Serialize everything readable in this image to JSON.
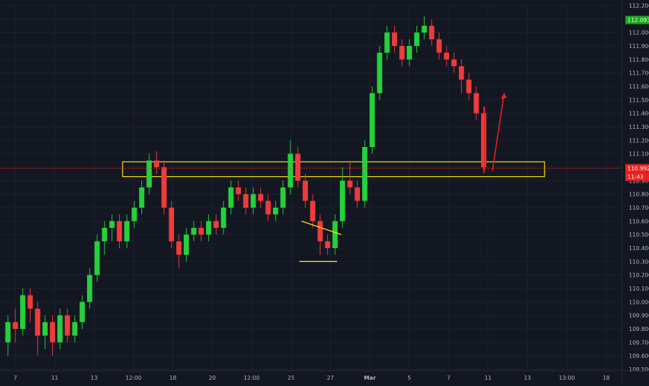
{
  "chart_data": {
    "type": "candlestick",
    "title": "",
    "xlabel": "",
    "ylabel": "",
    "ylim": [
      109.5,
      112.2
    ],
    "grid": true,
    "colors": {
      "background": "#131722",
      "grid": "#1e2230",
      "axis_text": "#b2b5be",
      "up": "#26d03c",
      "down": "#ef3b3b",
      "annotation": "#ffee00",
      "arrow": "#ef1f1f",
      "last_price_tag": "#ef1f1f",
      "high_price_tag": "#1aa31a"
    },
    "y_ticks": [
      "109.500",
      "109.600",
      "109.700",
      "109.800",
      "109.900",
      "110.000",
      "110.100",
      "110.200",
      "110.300",
      "110.400",
      "110.500",
      "110.600",
      "110.700",
      "110.800",
      "110.900",
      "111.000",
      "111.100",
      "111.200",
      "111.300",
      "111.400",
      "111.500",
      "111.600",
      "111.700",
      "111.800",
      "111.900",
      "112.000",
      "112.100",
      "112.200"
    ],
    "x_ticks": [
      "7",
      "11",
      "13",
      "12:00",
      "18",
      "20",
      "12:00",
      "25",
      "27",
      "Mar",
      "5",
      "7",
      "11",
      "13",
      "13:00",
      "18"
    ],
    "last_price": "110.992",
    "countdown": "11:43",
    "high_price": "112.093",
    "price_path": [
      [
        "7",
        109.7
      ],
      [
        "9",
        109.9
      ],
      [
        "11",
        110.1
      ],
      [
        "12",
        110.55
      ],
      [
        "13",
        110.85
      ],
      [
        "13.5",
        111.05
      ],
      [
        "12:00",
        110.75
      ],
      [
        "17",
        110.35
      ],
      [
        "18",
        110.5
      ],
      [
        "19",
        110.55
      ],
      [
        "20",
        110.88
      ],
      [
        "21",
        110.8
      ],
      [
        "12:00",
        110.75
      ],
      [
        "24",
        110.65
      ],
      [
        "25",
        110.85
      ],
      [
        "25.5",
        111.2
      ],
      [
        "26",
        110.9
      ],
      [
        "26.5",
        110.7
      ],
      [
        "27",
        110.4
      ],
      [
        "27.5",
        110.6
      ],
      [
        "28",
        110.9
      ],
      [
        "28.5",
        110.8
      ],
      [
        "1",
        111.4
      ],
      [
        "1.5",
        111.9
      ],
      [
        "Mar",
        112.0
      ],
      [
        "4",
        111.85
      ],
      [
        "5",
        112.0
      ],
      [
        "6",
        112.05
      ],
      [
        "7",
        111.9
      ],
      [
        "8",
        111.75
      ],
      [
        "8.5",
        111.55
      ],
      [
        "9",
        111.0
      ]
    ],
    "candles": [
      [
        109.7,
        109.85,
        109.6,
        109.9
      ],
      [
        109.85,
        109.8,
        109.7,
        109.95
      ],
      [
        109.8,
        110.05,
        109.75,
        110.1
      ],
      [
        110.05,
        109.95,
        109.85,
        110.1
      ],
      [
        109.95,
        109.75,
        109.6,
        110.0
      ],
      [
        109.75,
        109.85,
        109.65,
        109.9
      ],
      [
        109.85,
        109.7,
        109.6,
        109.9
      ],
      [
        109.7,
        109.9,
        109.65,
        109.95
      ],
      [
        109.9,
        109.75,
        109.7,
        109.95
      ],
      [
        109.75,
        109.85,
        109.7,
        109.9
      ],
      [
        109.85,
        110.0,
        109.8,
        110.05
      ],
      [
        110.0,
        110.2,
        109.95,
        110.25
      ],
      [
        110.2,
        110.45,
        110.15,
        110.5
      ],
      [
        110.45,
        110.55,
        110.35,
        110.6
      ],
      [
        110.55,
        110.6,
        110.45,
        110.65
      ],
      [
        110.6,
        110.45,
        110.4,
        110.65
      ],
      [
        110.45,
        110.6,
        110.4,
        110.65
      ],
      [
        110.6,
        110.7,
        110.55,
        110.75
      ],
      [
        110.7,
        110.85,
        110.65,
        110.9
      ],
      [
        110.85,
        111.05,
        110.8,
        111.1
      ],
      [
        111.05,
        111.0,
        110.95,
        111.12
      ],
      [
        111.0,
        110.7,
        110.65,
        111.05
      ],
      [
        110.7,
        110.45,
        110.4,
        110.75
      ],
      [
        110.45,
        110.35,
        110.25,
        110.5
      ],
      [
        110.35,
        110.5,
        110.3,
        110.55
      ],
      [
        110.5,
        110.55,
        110.45,
        110.6
      ],
      [
        110.55,
        110.5,
        110.45,
        110.6
      ],
      [
        110.5,
        110.6,
        110.45,
        110.65
      ],
      [
        110.6,
        110.55,
        110.5,
        110.65
      ],
      [
        110.55,
        110.7,
        110.5,
        110.75
      ],
      [
        110.7,
        110.85,
        110.65,
        110.9
      ],
      [
        110.85,
        110.8,
        110.75,
        110.9
      ],
      [
        110.8,
        110.7,
        110.65,
        110.85
      ],
      [
        110.7,
        110.8,
        110.65,
        110.85
      ],
      [
        110.8,
        110.75,
        110.7,
        110.85
      ],
      [
        110.75,
        110.65,
        110.6,
        110.8
      ],
      [
        110.65,
        110.7,
        110.6,
        110.75
      ],
      [
        110.7,
        110.85,
        110.65,
        110.9
      ],
      [
        110.85,
        111.1,
        110.8,
        111.2
      ],
      [
        111.1,
        110.9,
        110.85,
        111.15
      ],
      [
        110.9,
        110.75,
        110.7,
        110.95
      ],
      [
        110.75,
        110.6,
        110.55,
        110.8
      ],
      [
        110.6,
        110.45,
        110.35,
        110.65
      ],
      [
        110.45,
        110.4,
        110.35,
        110.5
      ],
      [
        110.4,
        110.6,
        110.35,
        110.65
      ],
      [
        110.6,
        110.9,
        110.55,
        111.0
      ],
      [
        110.9,
        110.85,
        110.8,
        111.05
      ],
      [
        110.85,
        110.75,
        110.7,
        110.9
      ],
      [
        110.75,
        111.15,
        110.7,
        111.2
      ],
      [
        111.15,
        111.55,
        111.1,
        111.6
      ],
      [
        111.55,
        111.85,
        111.5,
        111.9
      ],
      [
        111.85,
        112.0,
        111.8,
        112.05
      ],
      [
        112.0,
        111.9,
        111.85,
        112.05
      ],
      [
        111.9,
        111.8,
        111.75,
        111.95
      ],
      [
        111.8,
        111.9,
        111.75,
        111.95
      ],
      [
        111.9,
        112.0,
        111.85,
        112.05
      ],
      [
        112.0,
        112.05,
        111.95,
        112.12
      ],
      [
        112.05,
        111.95,
        111.9,
        112.1
      ],
      [
        111.95,
        111.85,
        111.8,
        112.0
      ],
      [
        111.85,
        111.8,
        111.75,
        111.9
      ],
      [
        111.8,
        111.75,
        111.7,
        111.85
      ],
      [
        111.75,
        111.65,
        111.55,
        111.8
      ],
      [
        111.65,
        111.55,
        111.5,
        111.7
      ],
      [
        111.55,
        111.4,
        111.35,
        111.6
      ],
      [
        111.4,
        111.0,
        110.95,
        111.45
      ]
    ],
    "annotations": {
      "zone_top": 111.04,
      "zone_bottom": 110.93,
      "channel": [
        {
          "from": [
            110.0,
            111.1
          ],
          "to": [
            110.6,
            110.5
          ]
        },
        {
          "from": [
            109.7,
            110.85
          ],
          "to": [
            110.3,
            110.3
          ]
        }
      ],
      "projection": [
        {
          "from": 110.97,
          "to": 111.55
        }
      ]
    }
  }
}
